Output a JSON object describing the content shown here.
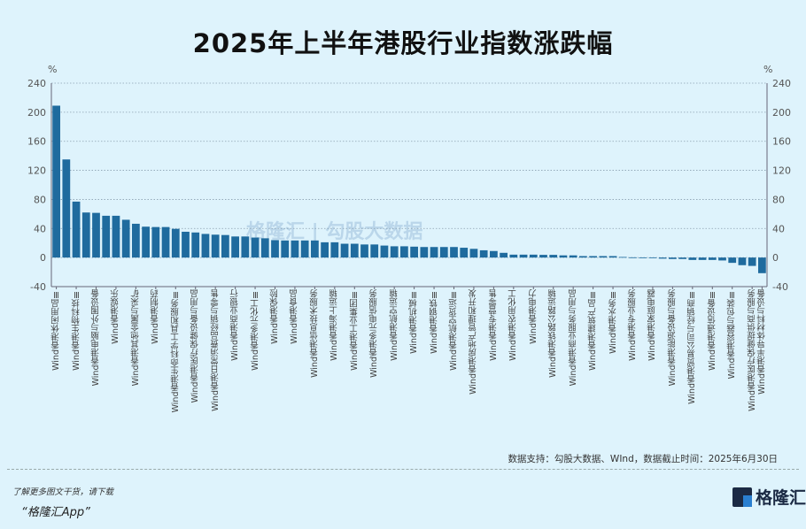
{
  "chart_data": {
    "type": "bar",
    "title": "2025年上半年港股行业指数涨跌幅",
    "ylabel_left": "%",
    "ylabel_right": "%",
    "ylim": [
      -40,
      240
    ],
    "yticks": [
      -40,
      0,
      40,
      80,
      120,
      160,
      200,
      240
    ],
    "grid": true,
    "bar_color": "#1f6b9e",
    "categories": [
      "Wind香港休闲用品Ⅲ",
      "",
      "Wind香港生物科技Ⅲ",
      "",
      "Wind香港电脑与外围设备",
      "",
      "Wind香港娱乐",
      "",
      "Wind香港其他金属与采矿",
      "",
      "Wind香港制药",
      "",
      "Wind香港生命科学工具和服务Ⅲ",
      "",
      "Wind香港医疗保健设备与用品",
      "",
      "Wind香港日常消费品经销与零售",
      "",
      "Wind香港商业银行",
      "",
      "Wind香港多元化工Ⅲ",
      "",
      "Wind香港保险",
      "",
      "Wind香港食品",
      "",
      "Wind香港信息技术服务",
      "",
      "Wind香港海上运输",
      "",
      "Wind香港工业集团Ⅲ",
      "",
      "Wind香港多元电信服务",
      "",
      "Wind香港航空运输",
      "",
      "Wind香港机械Ⅲ",
      "",
      "Wind香港钢铁Ⅲ",
      "",
      "Wind香港航空货运Ⅲ",
      "",
      "Wind香港房地产管理和开发",
      "",
      "Wind香港专营零售",
      "",
      "Wind香港农用化工",
      "",
      "Wind香港电力",
      "",
      "Wind香港铁路公路运输",
      "",
      "Wind香港商业服务与用品",
      "",
      "Wind香港建筑产品Ⅲ",
      "",
      "Wind香港水务Ⅲ",
      "",
      "Wind香港专业服务",
      "",
      "Wind香港家庭电器",
      "",
      "Wind香港能源设备与服务",
      "",
      "Wind香港贸易公司与经销商Ⅲ",
      "",
      "Wind香港通信设备Ⅲ",
      "",
      "Wind香港容器与包装Ⅲ",
      "",
      "Wind香港医疗保健提供商与服务",
      "Wind香港半导体材料与设备"
    ],
    "values": [
      209,
      135,
      77,
      62,
      61.5,
      57.5,
      57.5,
      52,
      46.5,
      42.5,
      42,
      42,
      39.5,
      35.5,
      34.5,
      32.5,
      31.5,
      31,
      29,
      29,
      27.5,
      26.5,
      24,
      23.5,
      23.5,
      23.5,
      23.5,
      21,
      21,
      19,
      19,
      18,
      18,
      16.5,
      15.5,
      15.5,
      15,
      14.5,
      14.5,
      14.5,
      14.5,
      13.5,
      12,
      10,
      9,
      6.5,
      4,
      4,
      4,
      3.7,
      3.7,
      3,
      3,
      2,
      2,
      2,
      2,
      0.8,
      0.3,
      0.2,
      0.2,
      -1.5,
      -2,
      -2,
      -3.3,
      -3.3,
      -3.3,
      -4,
      -7.3,
      -10.5,
      -11.5,
      -21.5
    ]
  },
  "watermark": "格隆汇 | 勾股大数据",
  "source": "数据支持：勾股大数据、WInd，数据截止时间：2025年6月30日",
  "footer": {
    "promo": "了解更多图文干货，请下载",
    "app": "“格隆汇App”",
    "logo": "格隆汇"
  }
}
